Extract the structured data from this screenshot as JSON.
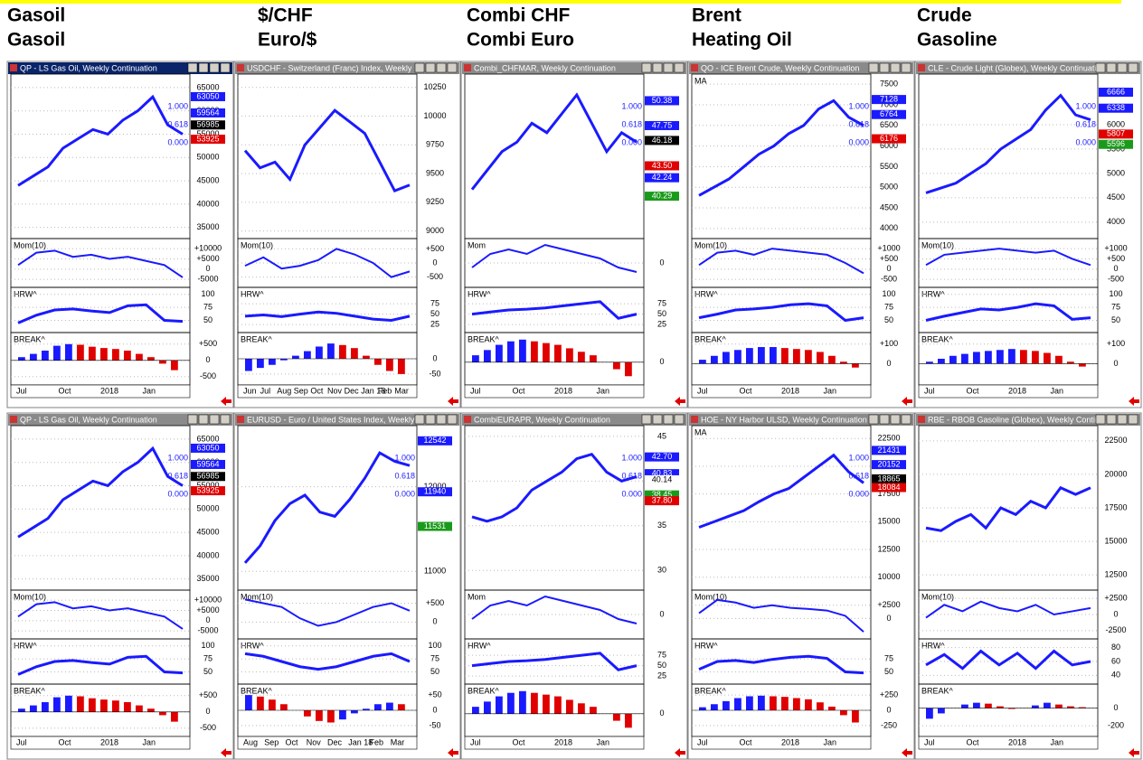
{
  "headers": [
    [
      "Gasoil",
      "Gasoil"
    ],
    [
      "$/CHF",
      "Euro/$"
    ],
    [
      "Combi CHF",
      "Combi Euro"
    ],
    [
      "Brent",
      "Heating Oil"
    ],
    [
      "Crude",
      "Gasoline"
    ]
  ],
  "sub_labels": {
    "mom": "Mom(10)",
    "hrw": "HRW^",
    "break": "BREAK^",
    "ma": "MA",
    "mom_short": "Mom"
  },
  "fib_labels": [
    "1.000",
    "0.618",
    "0.000"
  ],
  "panels": [
    {
      "title": "QP - LS Gas Oil, Weekly Continuation",
      "ylim": [
        33000,
        67500
      ],
      "yticks": [
        65000,
        60000,
        55000,
        50000,
        45000,
        40000,
        35000
      ],
      "price": [
        44000,
        46000,
        48000,
        52000,
        54000,
        56000,
        55000,
        58000,
        60000,
        63000,
        57000,
        55000
      ],
      "boxes": [
        {
          "value": 63050,
          "color": "#1a1aff"
        },
        {
          "value": 59564,
          "color": "#1a1aff"
        },
        {
          "value": 56985,
          "color": "#000"
        },
        {
          "value": 53925,
          "color": "#e00000"
        }
      ],
      "mom_ylim": [
        -8000,
        14000
      ],
      "mom_ticks": [
        {
          "value": 10000,
          "label": "+10000"
        },
        {
          "value": 5000,
          "label": "+5000"
        },
        0,
        {
          "value": -5000,
          "label": "-5000"
        }
      ],
      "mom": [
        2000,
        8000,
        9000,
        6000,
        7000,
        5000,
        6000,
        4000,
        2000,
        -4000
      ],
      "hrw_ylim": [
        30,
        110
      ],
      "hrw_ticks": [
        100,
        75,
        50
      ],
      "hrw": [
        45,
        60,
        70,
        72,
        68,
        65,
        78,
        80,
        50,
        48
      ],
      "break_ylim": [
        -700,
        800
      ],
      "break_ticks": [
        {
          "value": 500,
          "label": "+500"
        },
        0,
        {
          "value": -500,
          "label": "-500"
        }
      ],
      "break": [
        100,
        200,
        300,
        450,
        500,
        480,
        420,
        380,
        350,
        300,
        200,
        100,
        -100,
        -300
      ],
      "x_labels": [
        "Jul",
        "Oct",
        "2018",
        "Jan"
      ]
    },
    {
      "title": "USDCHF - Switzerland (Franc) Index, Weekly",
      "ylim": [
        8950,
        10350
      ],
      "yticks": [
        10250,
        10000,
        9750,
        9500,
        9250,
        9000
      ],
      "price": [
        9700,
        9550,
        9600,
        9450,
        9750,
        9900,
        10050,
        9950,
        9850,
        9600,
        9350,
        9400
      ],
      "boxes": [],
      "mom_ylim": [
        -800,
        800
      ],
      "mom_ticks": [
        {
          "value": 500,
          "label": "+500"
        },
        0,
        {
          "value": -500,
          "label": "-500"
        }
      ],
      "mom": [
        -100,
        200,
        -200,
        -100,
        100,
        500,
        300,
        0,
        -500,
        -300
      ],
      "hrw_ylim": [
        10,
        110
      ],
      "hrw_ticks": [
        75,
        50,
        25
      ],
      "hrw": [
        45,
        48,
        44,
        50,
        55,
        52,
        45,
        38,
        35,
        45
      ],
      "break_ylim": [
        -80,
        80
      ],
      "break_ticks": [
        0,
        {
          "value": -50,
          "label": "-50"
        }
      ],
      "break": [
        -40,
        -30,
        -20,
        -5,
        10,
        25,
        40,
        50,
        45,
        35,
        10,
        -20,
        -40,
        -50
      ],
      "x_labels": [
        "Jun",
        "Jul",
        "Aug",
        "Sep",
        "Oct",
        "Nov",
        "Dec",
        "Jan 18",
        "Feb",
        "Mar"
      ]
    },
    {
      "title": "Combi_CHFMAR, Weekly Continuation",
      "ylim": [
        36,
        53
      ],
      "yticks": [],
      "price": [
        41,
        43,
        45,
        46,
        48,
        47,
        49,
        51,
        48,
        45,
        47,
        46
      ],
      "boxes": [
        {
          "value": 50.38,
          "color": "#1a1aff"
        },
        {
          "value": 47.75,
          "color": "#1a1aff"
        },
        {
          "value": 46.18,
          "color": "#000"
        },
        {
          "value": 43.5,
          "label": "43.50",
          "color": "#e00000"
        },
        {
          "value": 42.24,
          "color": "#1a1aff"
        },
        {
          "value": 40.29,
          "color": "#1a9a1a"
        }
      ],
      "mom_ylim": [
        -5,
        5
      ],
      "mom_ticks": [
        0
      ],
      "mom": [
        -1,
        2,
        3,
        2,
        4,
        3,
        2,
        1,
        -1,
        -2
      ],
      "hrw_ylim": [
        10,
        110
      ],
      "hrw_ticks": [
        75,
        50,
        25
      ],
      "hrw": [
        50,
        55,
        60,
        62,
        65,
        70,
        75,
        80,
        40,
        50
      ],
      "break_ylim": [
        -60,
        80
      ],
      "break_ticks": [
        0
      ],
      "break": [
        20,
        35,
        50,
        60,
        65,
        60,
        55,
        50,
        40,
        30,
        20,
        0,
        -20,
        -40
      ],
      "x_labels": [
        "Jul",
        "Oct",
        "2018",
        "Jan"
      ]
    },
    {
      "title": "QO - ICE Brent Crude, Weekly Continuation",
      "ylim": [
        3800,
        7700
      ],
      "yticks": [
        7500,
        7000,
        6500,
        6000,
        5500,
        5000,
        4500,
        4000
      ],
      "price": [
        4800,
        5000,
        5200,
        5500,
        5800,
        6000,
        6300,
        6500,
        6900,
        7100,
        6700,
        6500
      ],
      "boxes": [
        {
          "value": 7128,
          "color": "#1a1aff"
        },
        {
          "value": 6764,
          "color": "#1a1aff"
        },
        {
          "value": 6176,
          "color": "#e00000"
        }
      ],
      "mom_ylim": [
        -800,
        1400
      ],
      "mom_ticks": [
        {
          "value": 1000,
          "label": "+1000"
        },
        {
          "value": 500,
          "label": "+500"
        },
        0,
        {
          "value": -500,
          "label": "-500"
        }
      ],
      "mom": [
        200,
        800,
        900,
        700,
        1000,
        900,
        800,
        700,
        300,
        -200
      ],
      "hrw_ylim": [
        30,
        110
      ],
      "hrw_ticks": [
        100,
        75,
        50
      ],
      "hrw": [
        55,
        62,
        70,
        72,
        75,
        80,
        82,
        78,
        50,
        55
      ],
      "break_ylim": [
        -100,
        150
      ],
      "break_ticks": [
        {
          "value": 100,
          "label": "+100"
        },
        0
      ],
      "break": [
        20,
        40,
        60,
        70,
        80,
        85,
        85,
        80,
        75,
        70,
        60,
        40,
        10,
        -20
      ],
      "x_labels": [
        "Jul",
        "Oct",
        "2018",
        "Jan"
      ]
    },
    {
      "title": "CLE - Crude Light (Globex), Weekly Continuati...",
      "ylim": [
        3700,
        7000
      ],
      "yticks": [
        6000,
        5500,
        5000,
        4500,
        4000
      ],
      "price": [
        4600,
        4700,
        4800,
        5000,
        5200,
        5500,
        5700,
        5900,
        6300,
        6600,
        6200,
        6100
      ],
      "boxes": [
        {
          "value": 6666,
          "color": "#1a1aff"
        },
        {
          "value": 6338,
          "color": "#1a1aff"
        },
        {
          "value": 5807,
          "color": "#e00000"
        },
        {
          "value": 5596,
          "color": "#1a9a1a"
        }
      ],
      "mom_ylim": [
        -800,
        1400
      ],
      "mom_ticks": [
        {
          "value": 1000,
          "label": "+1000"
        },
        {
          "value": 500,
          "label": "+500"
        },
        0,
        {
          "value": -500,
          "label": "-500"
        }
      ],
      "mom": [
        200,
        700,
        800,
        900,
        1000,
        900,
        800,
        900,
        500,
        200
      ],
      "hrw_ylim": [
        30,
        110
      ],
      "hrw_ticks": [
        100,
        75,
        50
      ],
      "hrw": [
        50,
        58,
        65,
        72,
        70,
        75,
        82,
        78,
        52,
        55
      ],
      "break_ylim": [
        -100,
        150
      ],
      "break_ticks": [
        {
          "value": 100,
          "label": "+100"
        },
        0
      ],
      "break": [
        10,
        25,
        40,
        50,
        60,
        65,
        70,
        75,
        70,
        65,
        55,
        40,
        10,
        -15
      ],
      "x_labels": [
        "Jul",
        "Oct",
        "2018",
        "Jan"
      ]
    },
    {
      "title": "QP - LS Gas Oil, Weekly Continuation",
      "ylim": [
        33000,
        67500
      ],
      "yticks": [
        65000,
        60000,
        55000,
        50000,
        45000,
        40000,
        35000
      ],
      "price": [
        44000,
        46000,
        48000,
        52000,
        54000,
        56000,
        55000,
        58000,
        60000,
        63000,
        57000,
        55000
      ],
      "boxes": [
        {
          "value": 63050,
          "color": "#1a1aff"
        },
        {
          "value": 59564,
          "color": "#1a1aff"
        },
        {
          "value": 56985,
          "color": "#000"
        },
        {
          "value": 53925,
          "color": "#e00000"
        }
      ],
      "mom_ylim": [
        -8000,
        14000
      ],
      "mom_ticks": [
        {
          "value": 10000,
          "label": "+10000"
        },
        {
          "value": 5000,
          "label": "+5000"
        },
        0,
        {
          "value": -5000,
          "label": "-5000"
        }
      ],
      "mom": [
        2000,
        8000,
        9000,
        6000,
        7000,
        5000,
        6000,
        4000,
        2000,
        -4000
      ],
      "hrw_ylim": [
        30,
        110
      ],
      "hrw_ticks": [
        100,
        75,
        50
      ],
      "hrw": [
        45,
        60,
        70,
        72,
        68,
        65,
        78,
        80,
        50,
        48
      ],
      "break_ylim": [
        -700,
        800
      ],
      "break_ticks": [
        {
          "value": 500,
          "label": "+500"
        },
        0,
        {
          "value": -500,
          "label": "-500"
        }
      ],
      "break": [
        100,
        200,
        300,
        450,
        500,
        480,
        420,
        380,
        350,
        300,
        200,
        100,
        -100,
        -300
      ],
      "x_labels": [
        "Jul",
        "Oct",
        "2018",
        "Jan"
      ]
    },
    {
      "title": "EURUSD - Euro / United States Index, Weekly",
      "ylim": [
        10800,
        12700
      ],
      "yticks": [
        12000,
        11000
      ],
      "price": [
        11100,
        11300,
        11600,
        11800,
        11900,
        11700,
        11650,
        11850,
        12100,
        12400,
        12300,
        12250
      ],
      "boxes": [
        {
          "value": 12542,
          "color": "#1a1aff"
        },
        {
          "value": 11940,
          "color": "#1a1aff"
        },
        {
          "value": 11531,
          "color": "#1a9a1a"
        }
      ],
      "mom_ylim": [
        -400,
        800
      ],
      "mom_ticks": [
        {
          "value": 500,
          "label": "+500"
        },
        0
      ],
      "mom": [
        600,
        500,
        400,
        100,
        -100,
        0,
        200,
        400,
        500,
        300
      ],
      "hrw_ylim": [
        30,
        110
      ],
      "hrw_ticks": [
        100,
        75,
        50
      ],
      "hrw": [
        85,
        80,
        70,
        60,
        55,
        60,
        70,
        80,
        85,
        70
      ],
      "break_ylim": [
        -80,
        80
      ],
      "break_ticks": [
        {
          "value": 50,
          "label": "+50"
        },
        0,
        {
          "value": -50,
          "label": "-50"
        }
      ],
      "break": [
        50,
        45,
        35,
        20,
        0,
        -20,
        -35,
        -40,
        -30,
        -10,
        5,
        20,
        25,
        20
      ],
      "x_labels": [
        "Aug",
        "Sep",
        "Oct",
        "Nov",
        "Dec",
        "Jan 18",
        "Feb",
        "Mar"
      ]
    },
    {
      "title": "CombiEURAPR, Weekly Continuation",
      "ylim": [
        28,
        46
      ],
      "yticks": [
        45,
        40,
        35,
        30
      ],
      "price": [
        36,
        35.5,
        36,
        37,
        39,
        40,
        41,
        42.5,
        43,
        41,
        40,
        40.5
      ],
      "boxes": [
        {
          "value": 42.7,
          "label": "42.70",
          "color": "#1a1aff"
        },
        {
          "value": 40.83,
          "color": "#1a1aff"
        },
        {
          "value": 40.14,
          "color": "#fff"
        },
        {
          "value": 38.45,
          "color": "#1a9a1a"
        },
        {
          "value": 37.8,
          "label": "37.80",
          "color": "#e00000"
        }
      ],
      "mom_ylim": [
        -5,
        5
      ],
      "mom_ticks": [
        0
      ],
      "mom": [
        -1,
        2,
        3,
        2,
        4,
        3,
        2,
        1,
        -1,
        -2
      ],
      "hrw_ylim": [
        10,
        110
      ],
      "hrw_ticks": [
        75,
        50,
        25
      ],
      "hrw": [
        50,
        55,
        60,
        62,
        65,
        70,
        75,
        80,
        40,
        50
      ],
      "break_ylim": [
        -60,
        80
      ],
      "break_ticks": [
        0
      ],
      "break": [
        20,
        35,
        50,
        60,
        65,
        60,
        55,
        50,
        40,
        30,
        20,
        0,
        -20,
        -40
      ],
      "x_labels": [
        "Jul",
        "Oct",
        "2018",
        "Jan"
      ]
    },
    {
      "title": "HOE - NY Harbor ULSD, Weekly Continuation",
      "ylim": [
        9000,
        23500
      ],
      "yticks": [
        22500,
        20000,
        17500,
        15000,
        12500,
        10000
      ],
      "price": [
        14500,
        15000,
        15500,
        16000,
        16800,
        17500,
        18000,
        19000,
        20000,
        21000,
        19500,
        18500
      ],
      "boxes": [
        {
          "value": 21431,
          "color": "#1a1aff"
        },
        {
          "value": 20152,
          "color": "#1a1aff"
        },
        {
          "value": 18865,
          "color": "#000"
        },
        {
          "value": 18084,
          "color": "#e00000"
        }
      ],
      "mom_ylim": [
        -3500,
        5000
      ],
      "mom_ticks": [
        {
          "value": 2500,
          "label": "+2500"
        },
        0
      ],
      "mom": [
        1000,
        3500,
        3000,
        2000,
        2500,
        2000,
        1800,
        1500,
        500,
        -2500
      ],
      "hrw_ylim": [
        30,
        110
      ],
      "hrw_ticks": [
        75,
        50
      ],
      "hrw": [
        55,
        70,
        72,
        68,
        74,
        78,
        80,
        76,
        50,
        48
      ],
      "break_ylim": [
        -400,
        400
      ],
      "break_ticks": [
        {
          "value": 250,
          "label": "+250"
        },
        0,
        {
          "value": -250,
          "label": "-250"
        }
      ],
      "break": [
        50,
        100,
        150,
        200,
        230,
        240,
        230,
        220,
        200,
        180,
        130,
        60,
        -80,
        -200
      ],
      "x_labels": [
        "Jul",
        "Oct",
        "2018",
        "Jan"
      ]
    },
    {
      "title": "RBE - RBOB Gasoline (Globex), Weekly Contin...",
      "ylim": [
        11500,
        23500
      ],
      "yticks": [
        22500,
        20000,
        17500,
        15000,
        12500
      ],
      "price": [
        16000,
        15800,
        16500,
        17000,
        16000,
        17500,
        17000,
        18000,
        17500,
        19000,
        18500,
        19000
      ],
      "boxes": [],
      "mom_ylim": [
        -3500,
        3500
      ],
      "mom_ticks": [
        {
          "value": 2500,
          "label": "+2500"
        },
        0,
        {
          "value": -2500,
          "label": "-2500"
        }
      ],
      "mom": [
        -500,
        1500,
        500,
        2000,
        1000,
        500,
        1500,
        0,
        500,
        1000
      ],
      "hrw_ylim": [
        30,
        90
      ],
      "hrw_ticks": [
        80,
        60,
        40
      ],
      "hrw": [
        55,
        70,
        50,
        75,
        55,
        72,
        50,
        75,
        55,
        60
      ],
      "break_ylim": [
        -300,
        250
      ],
      "break_ticks": [
        0,
        {
          "value": -200,
          "label": "-200"
        }
      ],
      "break": [
        -120,
        -60,
        0,
        40,
        60,
        50,
        20,
        -10,
        0,
        30,
        60,
        40,
        20,
        10
      ],
      "x_labels": [
        "Jul",
        "Oct",
        "2018",
        "Jan"
      ]
    }
  ]
}
